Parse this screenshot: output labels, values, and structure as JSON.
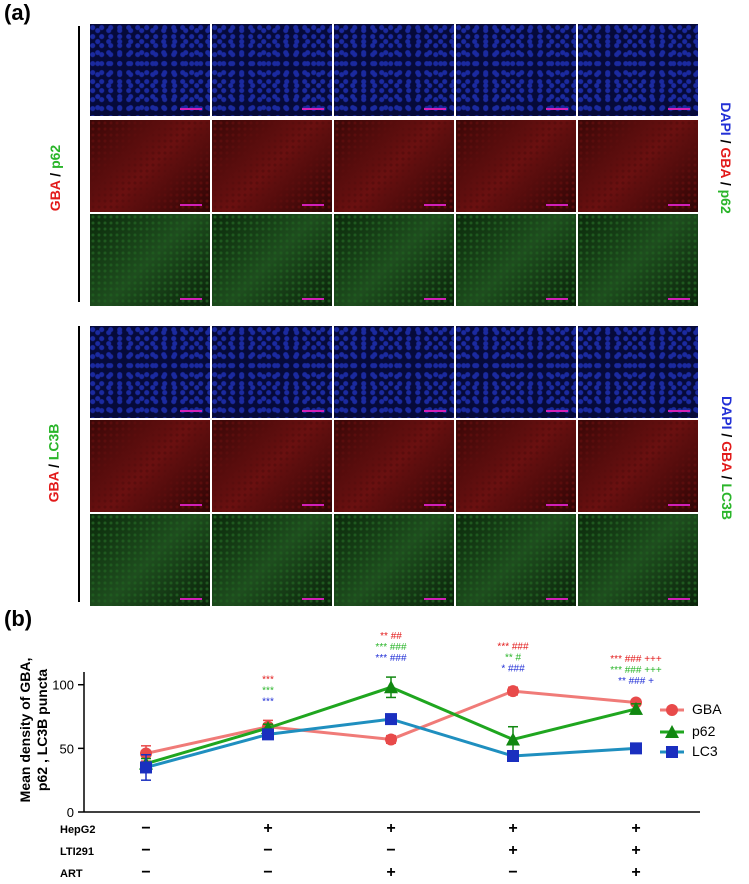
{
  "panel_a": {
    "label": "(a)",
    "group1": {
      "left_label": [
        "GBA",
        " / ",
        "p62"
      ],
      "right_label": [
        "DAPI",
        " / ",
        "GBA",
        " / ",
        "p62"
      ]
    },
    "group2": {
      "left_label": [
        "GBA",
        " / ",
        "LC3B"
      ],
      "right_label": [
        "DAPI",
        " / ",
        "GBA",
        " / ",
        "LC3B"
      ]
    }
  },
  "panel_b": {
    "label": "(b)",
    "conditions": {
      "HepG2": [
        "−",
        "+",
        "+",
        "+",
        "+"
      ],
      "LTI291": [
        "−",
        "−",
        "−",
        "+",
        "+"
      ],
      "ART": [
        "−",
        "−",
        "+",
        "−",
        "+"
      ]
    },
    "row_names": [
      "HepG2",
      "LTI291",
      "ART"
    ],
    "colors": {
      "GBA": "#f07b78",
      "p62": "#1fa61f",
      "LC3": "#1f8fbf"
    },
    "marker_colors": {
      "GBA": "#e84a4a",
      "p62": "#118811",
      "LC3": "#1a2fbf"
    },
    "annotations": [
      {
        "idx": 1,
        "lines": [
          {
            "text": "***",
            "color": "#e21a1a"
          },
          {
            "text": "***",
            "color": "#2ab52a"
          },
          {
            "text": "***",
            "color": "#2230d6"
          }
        ]
      },
      {
        "idx": 2,
        "lines": [
          {
            "text": "**  ##",
            "color": "#e21a1a"
          },
          {
            "text": "*** ###",
            "color": "#2ab52a"
          },
          {
            "text": "*** ###",
            "color": "#2230d6"
          }
        ]
      },
      {
        "idx": 3,
        "lines": [
          {
            "text": "*** ###",
            "color": "#e21a1a"
          },
          {
            "text": "**   #",
            "color": "#2ab52a"
          },
          {
            "text": "*  ###",
            "color": "#2230d6"
          }
        ]
      },
      {
        "idx": 4,
        "lines": [
          {
            "text": "*** ### +++",
            "color": "#e21a1a"
          },
          {
            "text": "*** ### +++",
            "color": "#2ab52a"
          },
          {
            "text": "** ###   +",
            "color": "#2230d6"
          }
        ]
      }
    ]
  },
  "chart_data": {
    "type": "line",
    "ylabel": "Mean density of GBA, p62 , LC3B puncta",
    "ylim": [
      0,
      110
    ],
    "yticks": [
      0,
      50,
      100
    ],
    "x": [
      1,
      2,
      3,
      4,
      5
    ],
    "series": [
      {
        "name": "GBA",
        "values": [
          46,
          67,
          57,
          95,
          86
        ],
        "errors": [
          6,
          5,
          3,
          3,
          2
        ]
      },
      {
        "name": "p62",
        "values": [
          38,
          66,
          98,
          57,
          81
        ],
        "errors": [
          4,
          3,
          8,
          10,
          4
        ]
      },
      {
        "name": "LC3",
        "values": [
          35,
          61,
          73,
          44,
          50
        ],
        "errors": [
          10,
          3,
          3,
          4,
          2
        ]
      }
    ],
    "legend": "right"
  }
}
